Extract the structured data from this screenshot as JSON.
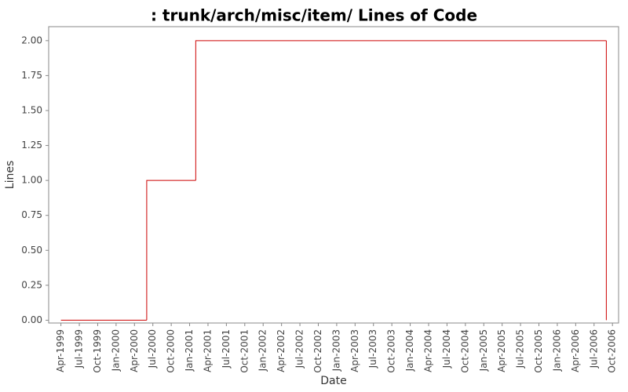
{
  "chart_data": {
    "type": "step",
    "title": ": trunk/arch/misc/item/ Lines of Code",
    "x_label": "Date",
    "y_label": "Lines",
    "x": [
      "1999-04",
      "2000-06",
      "2001-02",
      "2006-09"
    ],
    "series": [
      {
        "name": "Lines",
        "color": "#cc0000",
        "values": [
          0,
          1,
          2,
          0
        ]
      }
    ],
    "xlim": [
      "1999-02",
      "2006-11"
    ],
    "xticks": [
      {
        "value": "1999-04",
        "label": "Apr-1999"
      },
      {
        "value": "1999-07",
        "label": "Jul-1999"
      },
      {
        "value": "1999-10",
        "label": "Oct-1999"
      },
      {
        "value": "2000-01",
        "label": "Jan-2000"
      },
      {
        "value": "2000-04",
        "label": "Apr-2000"
      },
      {
        "value": "2000-07",
        "label": "Jul-2000"
      },
      {
        "value": "2000-10",
        "label": "Oct-2000"
      },
      {
        "value": "2001-01",
        "label": "Jan-2001"
      },
      {
        "value": "2001-04",
        "label": "Apr-2001"
      },
      {
        "value": "2001-07",
        "label": "Jul-2001"
      },
      {
        "value": "2001-10",
        "label": "Oct-2001"
      },
      {
        "value": "2002-01",
        "label": "Jan-2002"
      },
      {
        "value": "2002-04",
        "label": "Apr-2002"
      },
      {
        "value": "2002-07",
        "label": "Jul-2002"
      },
      {
        "value": "2002-10",
        "label": "Oct-2002"
      },
      {
        "value": "2003-01",
        "label": "Jan-2003"
      },
      {
        "value": "2003-04",
        "label": "Apr-2003"
      },
      {
        "value": "2003-07",
        "label": "Jul-2003"
      },
      {
        "value": "2003-10",
        "label": "Oct-2003"
      },
      {
        "value": "2004-01",
        "label": "Jan-2004"
      },
      {
        "value": "2004-04",
        "label": "Apr-2004"
      },
      {
        "value": "2004-07",
        "label": "Jul-2004"
      },
      {
        "value": "2004-10",
        "label": "Oct-2004"
      },
      {
        "value": "2005-01",
        "label": "Jan-2005"
      },
      {
        "value": "2005-04",
        "label": "Apr-2005"
      },
      {
        "value": "2005-07",
        "label": "Jul-2005"
      },
      {
        "value": "2005-10",
        "label": "Oct-2005"
      },
      {
        "value": "2006-01",
        "label": "Jan-2006"
      },
      {
        "value": "2006-04",
        "label": "Apr-2006"
      },
      {
        "value": "2006-07",
        "label": "Jul-2006"
      },
      {
        "value": "2006-10",
        "label": "Oct-2006"
      }
    ],
    "ylim": [
      -0.02,
      2.1
    ],
    "yticks": [
      {
        "value": 0,
        "label": "0.00"
      },
      {
        "value": 0.25,
        "label": "0.25"
      },
      {
        "value": 0.5,
        "label": "0.50"
      },
      {
        "value": 0.75,
        "label": "0.75"
      },
      {
        "value": 1,
        "label": "1.00"
      },
      {
        "value": 1.25,
        "label": "1.25"
      },
      {
        "value": 1.5,
        "label": "1.50"
      },
      {
        "value": 1.75,
        "label": "1.75"
      },
      {
        "value": 2,
        "label": "2.00"
      }
    ],
    "grid": false
  }
}
